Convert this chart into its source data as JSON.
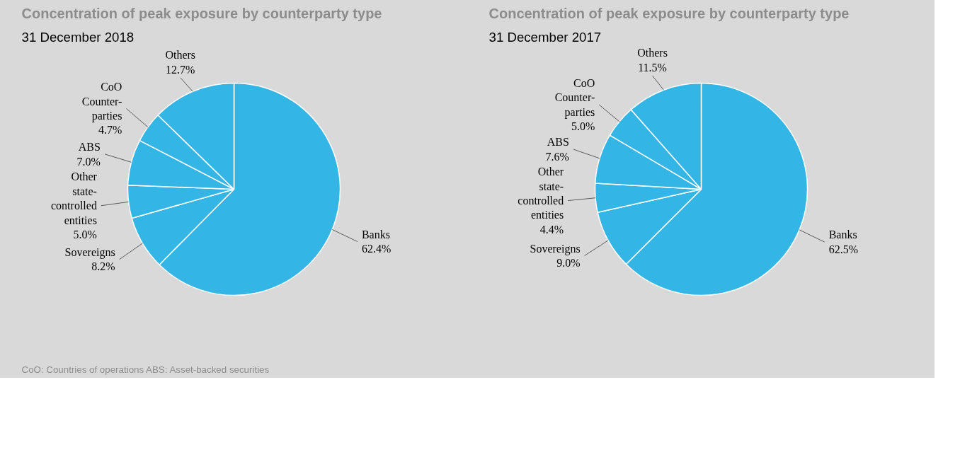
{
  "chart_data": [
    {
      "type": "pie",
      "title": "Concentration of peak exposure by counterparty type",
      "subtitle": "31 December 2018",
      "categories": [
        "Banks",
        "Sovereigns",
        "Other\nstate-\ncontrolled\nentities",
        "ABS",
        "CoO\nCounter-\nparties",
        "Others"
      ],
      "values": [
        62.4,
        8.2,
        5.0,
        7.0,
        4.7,
        12.7
      ],
      "value_labels": [
        "62.4%",
        "8.2%",
        "5.0%",
        "7.0%",
        "4.7%",
        "12.7%"
      ],
      "colors": [
        "#33b5e5",
        "#33b5e5",
        "#33b5e5",
        "#33b5e5",
        "#33b5e5",
        "#33b5e5"
      ],
      "annotations": [
        "CoO: Countries of operations ABS: Asset-backed securities"
      ]
    },
    {
      "type": "pie",
      "title": "Concentration of peak exposure by counterparty type",
      "subtitle": "31 December 2017",
      "categories": [
        "Banks",
        "Sovereigns",
        "Other\nstate-\ncontrolled\nentities",
        "ABS",
        "CoO\nCounter-\nparties",
        "Others"
      ],
      "values": [
        62.5,
        9.0,
        4.4,
        7.6,
        5.0,
        11.5
      ],
      "value_labels": [
        "62.5%",
        "9.0%",
        "4.4%",
        "7.6%",
        "5.0%",
        "11.5%"
      ],
      "colors": [
        "#33b5e5",
        "#33b5e5",
        "#33b5e5",
        "#33b5e5",
        "#33b5e5",
        "#33b5e5"
      ]
    }
  ]
}
